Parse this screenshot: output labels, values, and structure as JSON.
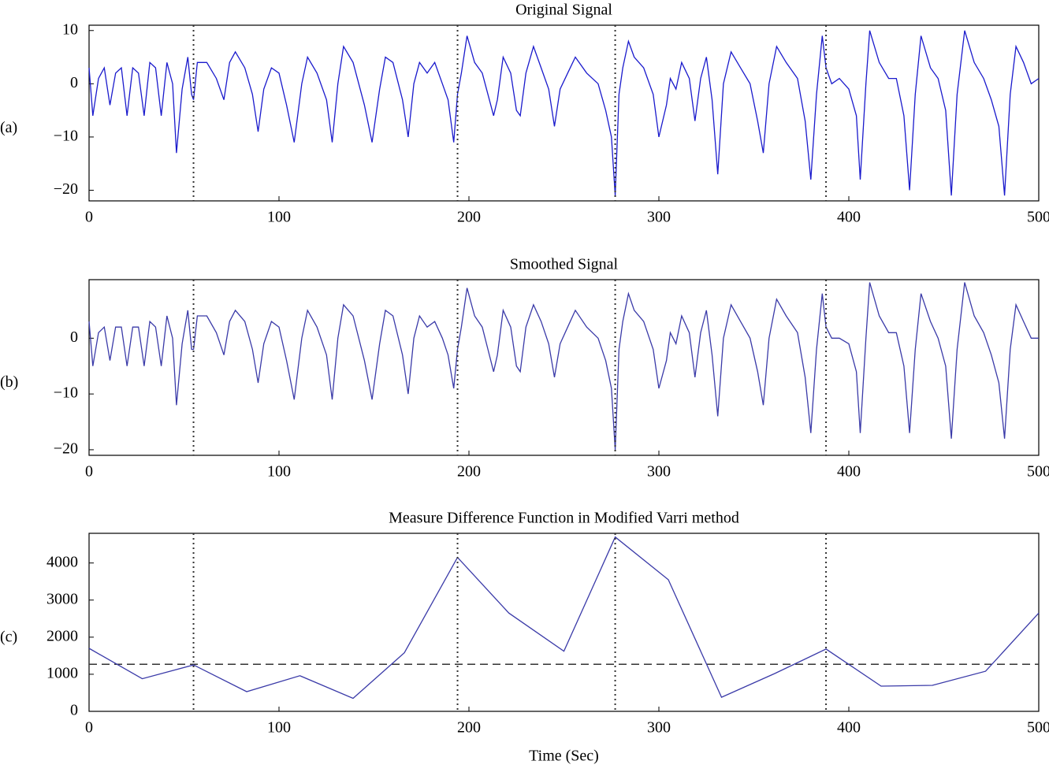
{
  "chart_data": [
    {
      "type": "line",
      "title": "Original Signal",
      "panel_label": "(a)",
      "color": "#1a1acc",
      "x": [
        0,
        2,
        5,
        8,
        11,
        14,
        17,
        20,
        23,
        26,
        29,
        32,
        35,
        38,
        41,
        44,
        46,
        49,
        52,
        54,
        55,
        57,
        62,
        67,
        71,
        74,
        77,
        82,
        86,
        89,
        92,
        96,
        100,
        104,
        108,
        112,
        115,
        120,
        125,
        128,
        131,
        134,
        139,
        145,
        149,
        153,
        156,
        160,
        165,
        168,
        171,
        174,
        178,
        182,
        186,
        189,
        192,
        194,
        196,
        199,
        203,
        207,
        210,
        213,
        215,
        218,
        222,
        225,
        227,
        230,
        234,
        238,
        242,
        245,
        248,
        252,
        256,
        262,
        268,
        272,
        275,
        277,
        279,
        281,
        284,
        287,
        292,
        297,
        300,
        304,
        306,
        309,
        312,
        316,
        319,
        322,
        325,
        328,
        331,
        334,
        338,
        343,
        348,
        352,
        355,
        358,
        362,
        367,
        373,
        377,
        380,
        383,
        386,
        388,
        391,
        395,
        400,
        404,
        406,
        409,
        411,
        416,
        421,
        425,
        429,
        432,
        435,
        438,
        443,
        447,
        451,
        454,
        457,
        461,
        466,
        471,
        475,
        479,
        482,
        485,
        488,
        492,
        496,
        500
      ],
      "values": [
        3,
        -6,
        1,
        3,
        -4,
        2,
        3,
        -6,
        3,
        2,
        -6,
        4,
        3,
        -6,
        4,
        0,
        -13,
        -1,
        5,
        -2,
        -3,
        4,
        4,
        1,
        -3,
        4,
        6,
        3,
        -2,
        -9,
        -1,
        3,
        2,
        -4,
        -11,
        0,
        5,
        2,
        -3,
        -11,
        0,
        7,
        4,
        -4,
        -11,
        -1,
        5,
        4,
        -3,
        -10,
        0,
        4,
        2,
        4,
        0,
        -3,
        -11,
        -2,
        2,
        9,
        4,
        2,
        -2,
        -6,
        -3,
        5,
        2,
        -5,
        -6,
        2,
        7,
        3,
        -1,
        -8,
        -1,
        2,
        5,
        2,
        0,
        -5,
        -10,
        -21,
        -2,
        3,
        8,
        5,
        3,
        -2,
        -10,
        -4,
        1,
        -1,
        4,
        1,
        -7,
        1,
        5,
        -3,
        -17,
        0,
        6,
        3,
        0,
        -7,
        -13,
        0,
        7,
        4,
        1,
        -7,
        -18,
        -2,
        9,
        3,
        0,
        1,
        -1,
        -6,
        -18,
        0,
        10,
        4,
        1,
        1,
        -6,
        -20,
        -2,
        9,
        3,
        1,
        -5,
        -21,
        -2,
        10,
        4,
        1,
        -3,
        -8,
        -21,
        -2,
        7,
        4,
        0,
        1
      ],
      "xlim": [
        0,
        500
      ],
      "xticks": [
        0,
        100,
        200,
        300,
        400,
        500
      ],
      "ylim": [
        -22,
        11
      ],
      "yticks": [
        {
          "value": -20,
          "label": "−20"
        },
        {
          "value": -10,
          "label": "−10"
        },
        0,
        10
      ],
      "vlines": [
        55,
        194,
        277,
        388
      ]
    },
    {
      "type": "line",
      "title": "Smoothed Signal",
      "panel_label": "(b)",
      "color": "#3a3aa8",
      "x": [
        0,
        2,
        5,
        8,
        11,
        14,
        17,
        20,
        23,
        26,
        29,
        32,
        35,
        38,
        41,
        44,
        46,
        49,
        52,
        54,
        55,
        57,
        62,
        67,
        71,
        74,
        77,
        82,
        86,
        89,
        92,
        96,
        100,
        104,
        108,
        112,
        115,
        120,
        125,
        128,
        131,
        134,
        139,
        145,
        149,
        153,
        156,
        160,
        165,
        168,
        171,
        174,
        178,
        182,
        186,
        189,
        192,
        194,
        196,
        199,
        203,
        207,
        210,
        213,
        215,
        218,
        222,
        225,
        227,
        230,
        234,
        238,
        242,
        245,
        248,
        252,
        256,
        262,
        268,
        272,
        275,
        277,
        279,
        281,
        284,
        287,
        292,
        297,
        300,
        304,
        306,
        309,
        312,
        316,
        319,
        322,
        325,
        328,
        331,
        334,
        338,
        343,
        348,
        352,
        355,
        358,
        362,
        367,
        373,
        377,
        380,
        383,
        386,
        388,
        391,
        395,
        400,
        404,
        406,
        409,
        411,
        416,
        421,
        425,
        429,
        432,
        435,
        438,
        443,
        447,
        451,
        454,
        457,
        461,
        466,
        471,
        475,
        479,
        482,
        485,
        488,
        492,
        496,
        500
      ],
      "values": [
        3,
        -5,
        1,
        2,
        -4,
        2,
        2,
        -5,
        2,
        2,
        -5,
        3,
        2,
        -5,
        4,
        0,
        -12,
        -1,
        5,
        -2,
        -2,
        4,
        4,
        1,
        -3,
        3,
        5,
        3,
        -2,
        -8,
        -1,
        3,
        2,
        -4,
        -11,
        0,
        5,
        2,
        -3,
        -11,
        0,
        6,
        4,
        -4,
        -11,
        -1,
        5,
        4,
        -3,
        -10,
        0,
        4,
        2,
        3,
        0,
        -3,
        -9,
        -2,
        2,
        9,
        4,
        2,
        -2,
        -6,
        -3,
        5,
        2,
        -5,
        -6,
        2,
        6,
        3,
        -1,
        -7,
        -1,
        2,
        5,
        2,
        0,
        -4,
        -9,
        -20,
        -2,
        3,
        8,
        5,
        3,
        -2,
        -9,
        -4,
        1,
        -1,
        4,
        1,
        -7,
        1,
        5,
        -3,
        -14,
        0,
        6,
        3,
        0,
        -6,
        -12,
        0,
        7,
        4,
        1,
        -7,
        -17,
        -2,
        8,
        2,
        0,
        0,
        -1,
        -6,
        -17,
        0,
        10,
        4,
        1,
        1,
        -5,
        -17,
        -2,
        8,
        3,
        0,
        -5,
        -18,
        -2,
        10,
        4,
        1,
        -3,
        -8,
        -18,
        -2,
        6,
        3,
        0,
        0
      ],
      "xlim": [
        0,
        500
      ],
      "xticks": [
        0,
        100,
        200,
        300,
        400,
        500
      ],
      "ylim": [
        -21,
        10.5
      ],
      "yticks": [
        {
          "value": -20,
          "label": "−20"
        },
        {
          "value": -10,
          "label": "−10"
        },
        0
      ],
      "vlines": [
        55,
        194,
        277,
        388
      ]
    },
    {
      "type": "line",
      "title": "Measure Difference Function in Modified Varri method",
      "panel_label": "(c)",
      "color": "#3a3aa8",
      "xlabel": "Time (Sec)",
      "x": [
        0,
        28,
        55,
        83,
        111,
        139,
        166,
        194,
        221,
        250,
        277,
        305,
        333,
        361,
        388,
        417,
        444,
        472,
        500
      ],
      "values": [
        1700,
        880,
        1250,
        530,
        960,
        350,
        1580,
        4150,
        2650,
        1620,
        4700,
        3550,
        380,
        1020,
        1680,
        680,
        700,
        1080,
        2650
      ],
      "xlim": [
        0,
        500
      ],
      "xticks": [
        0,
        100,
        200,
        300,
        400,
        500
      ],
      "ylim": [
        0,
        4800
      ],
      "yticks": [
        0,
        1000,
        2000,
        3000,
        4000
      ],
      "hlines": [
        1270
      ],
      "vlines": [
        55,
        194,
        277,
        388
      ]
    }
  ]
}
